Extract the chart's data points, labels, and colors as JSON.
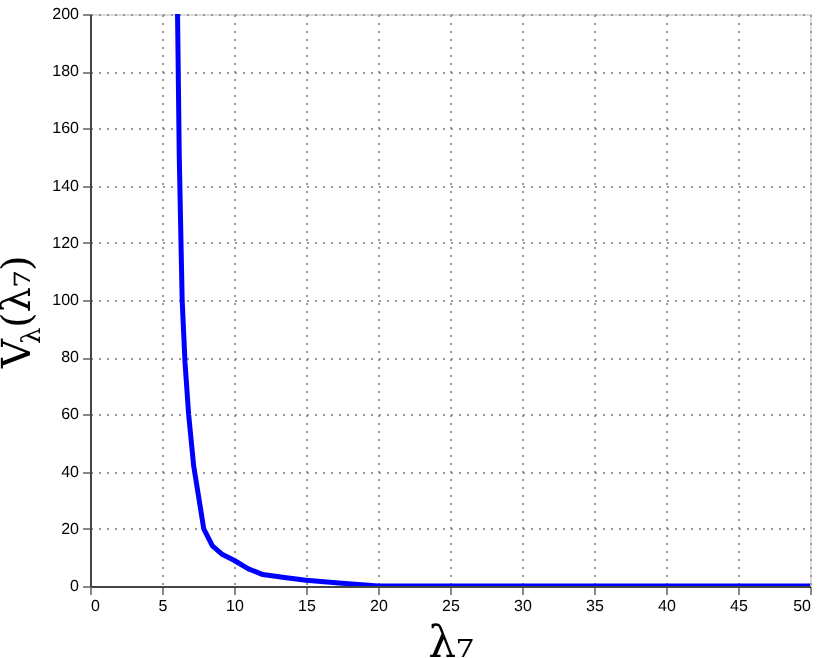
{
  "chart_data": {
    "type": "line",
    "xlabel": "λ₇",
    "ylabel": "V$_{λ}$(λ₇)",
    "x": [
      6.08,
      6.2,
      6.4,
      6.6,
      6.85,
      7.2,
      7.9,
      8.5,
      9.2,
      10,
      11,
      12,
      13.5,
      15,
      17.5,
      20,
      25,
      30,
      40,
      50
    ],
    "series": [
      {
        "color": "#0000ff",
        "values": [
          200,
          150,
          100,
          78,
          60,
          42,
          20,
          14,
          11,
          9,
          6,
          4,
          3,
          2,
          1,
          0,
          0,
          0,
          0,
          0
        ]
      }
    ],
    "xlim": [
      0,
      50
    ],
    "ylim": [
      0,
      200
    ],
    "xticks": [
      0,
      5,
      10,
      15,
      20,
      25,
      30,
      35,
      40,
      45,
      50
    ],
    "yticks": [
      0,
      20,
      40,
      60,
      80,
      100,
      120,
      140,
      160,
      180,
      200
    ],
    "grid": true,
    "marker": "none",
    "line_style": "solid"
  }
}
